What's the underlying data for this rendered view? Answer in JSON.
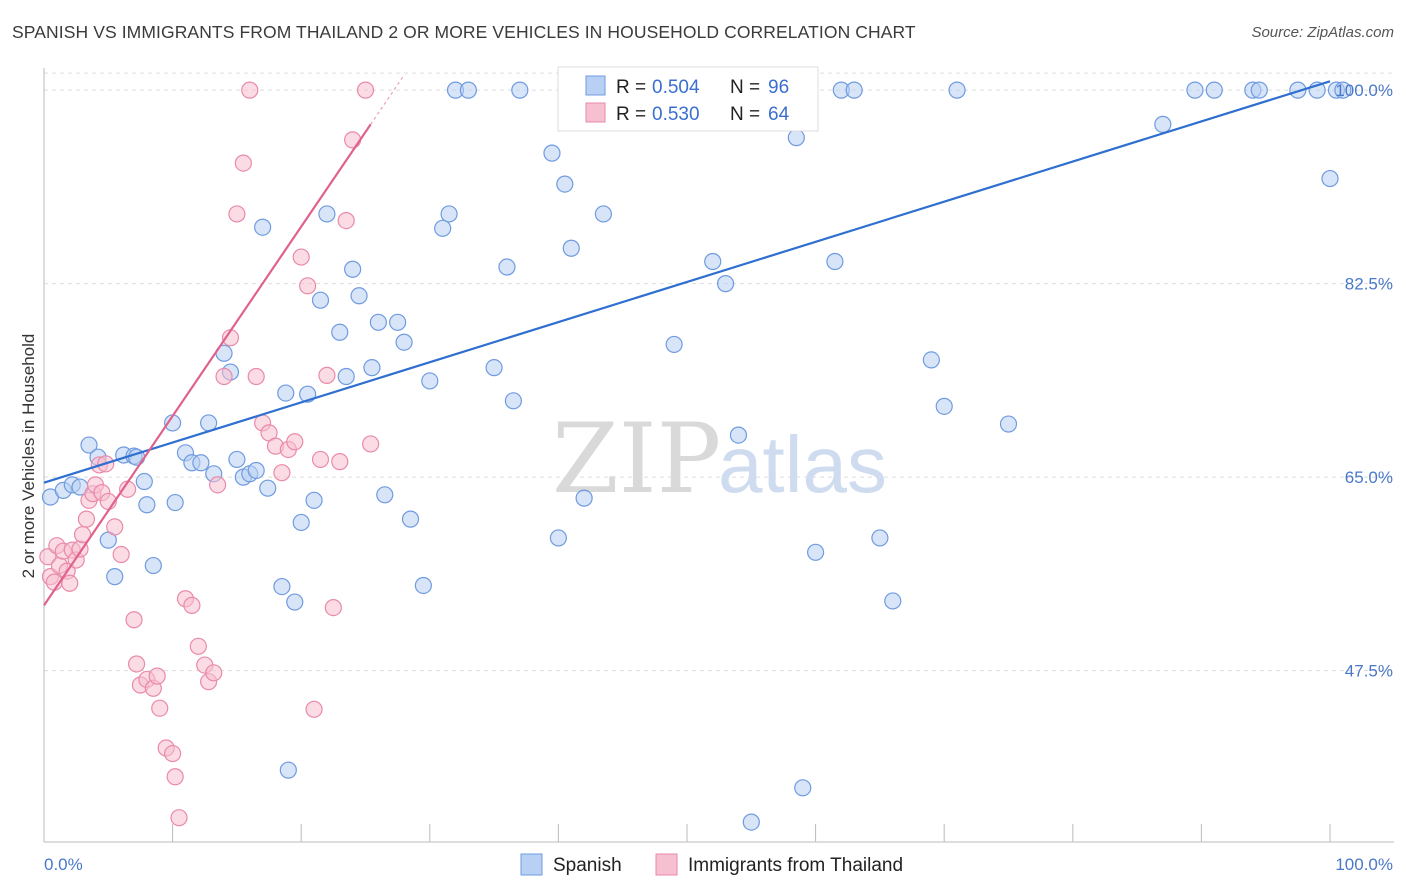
{
  "title": "SPANISH VS IMMIGRANTS FROM THAILAND 2 OR MORE VEHICLES IN HOUSEHOLD CORRELATION CHART",
  "source": "Source: ZipAtlas.com",
  "watermark": {
    "zip": "ZIP",
    "atlas": "atlas"
  },
  "colors": {
    "spanish_fill": "#b8d0f3",
    "spanish_stroke": "#6f9be0",
    "spanish_line": "#2f6fd0",
    "thai_fill": "#f7c0d0",
    "thai_stroke": "#e98aaa",
    "thai_line": "#e0628c",
    "grid": "#dcdcdc",
    "tick_label": "#4a78c8"
  },
  "legend": {
    "rows": [
      {
        "r_label": "R = ",
        "r_value": "0.504",
        "n_label": "N = ",
        "n_value": "96"
      },
      {
        "r_label": "R = ",
        "r_value": "0.530",
        "n_label": "N = ",
        "n_value": "64"
      }
    ]
  },
  "bottom_legend": [
    "Spanish",
    "Immigrants from Thailand"
  ],
  "chart_data": {
    "type": "scatter",
    "title": "SPANISH VS IMMIGRANTS FROM THAILAND 2 OR MORE VEHICLES IN HOUSEHOLD CORRELATION CHART",
    "xlabel": "",
    "ylabel": "2 or more Vehicles in Household",
    "xlim": [
      0,
      100
    ],
    "ylim": [
      32,
      102
    ],
    "x_tick_labels": [
      "0.0%",
      "100.0%"
    ],
    "y_ticks": [
      47.5,
      65.0,
      82.5,
      100.0
    ],
    "y_tick_labels": [
      "47.5%",
      "65.0%",
      "82.5%",
      "100.0%"
    ],
    "grid": "horizontal dashed",
    "legend_position": "top-center",
    "series": [
      {
        "name": "Spanish",
        "r": 0.504,
        "n": 96,
        "trend": {
          "x": [
            0,
            100
          ],
          "y": [
            64.5,
            100.8
          ]
        },
        "points": [
          [
            0.5,
            63.2
          ],
          [
            1.5,
            63.8
          ],
          [
            2.2,
            64.3
          ],
          [
            2.8,
            64.1
          ],
          [
            3.5,
            67.9
          ],
          [
            4.2,
            66.8
          ],
          [
            5,
            59.3
          ],
          [
            5.5,
            56
          ],
          [
            6.2,
            67
          ],
          [
            7,
            66.9
          ],
          [
            7.2,
            66.8
          ],
          [
            7.8,
            64.6
          ],
          [
            8,
            62.5
          ],
          [
            8.5,
            57
          ],
          [
            10,
            69.9
          ],
          [
            10.2,
            62.7
          ],
          [
            11,
            67.2
          ],
          [
            11.5,
            66.3
          ],
          [
            12.2,
            66.3
          ],
          [
            12.8,
            69.9
          ],
          [
            13.2,
            65.3
          ],
          [
            14,
            76.2
          ],
          [
            14.5,
            74.5
          ],
          [
            15,
            66.6
          ],
          [
            15.5,
            65
          ],
          [
            16,
            65.3
          ],
          [
            16.5,
            65.6
          ],
          [
            17,
            87.6
          ],
          [
            17.4,
            64
          ],
          [
            18.5,
            55.1
          ],
          [
            18.8,
            72.6
          ],
          [
            19,
            38.5
          ],
          [
            19.5,
            53.7
          ],
          [
            20,
            60.9
          ],
          [
            20.5,
            72.5
          ],
          [
            21,
            62.9
          ],
          [
            21.5,
            81
          ],
          [
            22,
            88.8
          ],
          [
            23,
            78.1
          ],
          [
            23.5,
            74.1
          ],
          [
            24,
            83.8
          ],
          [
            24.5,
            81.4
          ],
          [
            25.5,
            74.9
          ],
          [
            26,
            79
          ],
          [
            26.5,
            63.4
          ],
          [
            27.5,
            79
          ],
          [
            28,
            77.2
          ],
          [
            28.5,
            61.2
          ],
          [
            29.5,
            55.2
          ],
          [
            30,
            73.7
          ],
          [
            31,
            87.5
          ],
          [
            31.5,
            88.8
          ],
          [
            32,
            100
          ],
          [
            33,
            100
          ],
          [
            35,
            74.9
          ],
          [
            36,
            84
          ],
          [
            36.5,
            71.9
          ],
          [
            37,
            100
          ],
          [
            39.5,
            94.3
          ],
          [
            40,
            59.5
          ],
          [
            40.5,
            91.5
          ],
          [
            41,
            85.7
          ],
          [
            42,
            63.1
          ],
          [
            43.5,
            88.8
          ],
          [
            47,
            100
          ],
          [
            49,
            77
          ],
          [
            49.5,
            100
          ],
          [
            52,
            84.5
          ],
          [
            53,
            82.5
          ],
          [
            54,
            68.8
          ],
          [
            55,
            33.8
          ],
          [
            58,
            100
          ],
          [
            58.5,
            95.7
          ],
          [
            59,
            36.9
          ],
          [
            60,
            58.2
          ],
          [
            61.5,
            84.5
          ],
          [
            62,
            100
          ],
          [
            63,
            100
          ],
          [
            65,
            59.5
          ],
          [
            66,
            53.8
          ],
          [
            69,
            75.6
          ],
          [
            70,
            71.4
          ],
          [
            71,
            100
          ],
          [
            75,
            69.8
          ],
          [
            87,
            96.9
          ],
          [
            89.5,
            100
          ],
          [
            91,
            100
          ],
          [
            94,
            100
          ],
          [
            94.5,
            100
          ],
          [
            97.5,
            100
          ],
          [
            99,
            100
          ],
          [
            100,
            92
          ],
          [
            100.5,
            100
          ],
          [
            101,
            100
          ]
        ]
      },
      {
        "name": "Immigrants from Thailand",
        "r": 0.53,
        "n": 64,
        "trend": {
          "x": [
            0,
            25.4
          ],
          "y": [
            53.4,
            96.9
          ]
        },
        "points": [
          [
            0.3,
            57.8
          ],
          [
            0.5,
            56
          ],
          [
            0.8,
            55.5
          ],
          [
            1,
            58.8
          ],
          [
            1.2,
            57
          ],
          [
            1.5,
            58.3
          ],
          [
            1.8,
            56.5
          ],
          [
            2,
            55.4
          ],
          [
            2.2,
            58.4
          ],
          [
            2.5,
            57.5
          ],
          [
            2.8,
            58.5
          ],
          [
            3,
            59.8
          ],
          [
            3.3,
            61.2
          ],
          [
            3.5,
            62.9
          ],
          [
            3.8,
            63.5
          ],
          [
            4,
            64.3
          ],
          [
            4.3,
            66.1
          ],
          [
            4.5,
            63.6
          ],
          [
            4.8,
            66.2
          ],
          [
            5,
            62.8
          ],
          [
            5.5,
            60.5
          ],
          [
            6,
            58
          ],
          [
            6.5,
            63.9
          ],
          [
            7,
            52.1
          ],
          [
            7.2,
            48.1
          ],
          [
            7.5,
            46.2
          ],
          [
            8,
            46.7
          ],
          [
            8.5,
            45.9
          ],
          [
            8.8,
            47
          ],
          [
            9,
            44.1
          ],
          [
            9.5,
            40.5
          ],
          [
            10,
            40
          ],
          [
            10.2,
            37.9
          ],
          [
            10.5,
            34.2
          ],
          [
            11,
            54
          ],
          [
            11.5,
            53.4
          ],
          [
            12,
            49.7
          ],
          [
            12.5,
            48
          ],
          [
            12.8,
            46.5
          ],
          [
            13.2,
            47.3
          ],
          [
            13.5,
            64.3
          ],
          [
            14,
            74.1
          ],
          [
            14.5,
            77.6
          ],
          [
            15,
            88.8
          ],
          [
            15.5,
            93.4
          ],
          [
            16,
            100
          ],
          [
            16.5,
            74.1
          ],
          [
            17,
            69.9
          ],
          [
            17.5,
            69
          ],
          [
            18,
            67.8
          ],
          [
            18.5,
            65.4
          ],
          [
            19,
            67.5
          ],
          [
            19.5,
            68.2
          ],
          [
            20,
            84.9
          ],
          [
            20.5,
            82.3
          ],
          [
            21,
            44
          ],
          [
            21.5,
            66.6
          ],
          [
            22,
            74.2
          ],
          [
            22.5,
            53.2
          ],
          [
            23,
            66.4
          ],
          [
            23.5,
            88.2
          ],
          [
            24,
            95.5
          ],
          [
            25,
            100
          ],
          [
            25.4,
            68
          ]
        ]
      }
    ]
  }
}
